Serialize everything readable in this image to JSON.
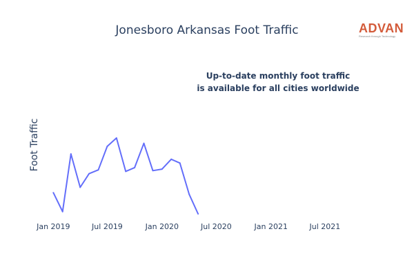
{
  "title": "Jonesboro Arkansas Foot Traffic",
  "brand": {
    "name": "ADVAN",
    "tagline": "Research through Technology",
    "color": "#d35b3a"
  },
  "annotation": {
    "line1": "Up-to-date monthly foot traffic",
    "line2": "is available for all cities worldwide"
  },
  "chart_data": {
    "type": "line",
    "title": "Jonesboro Arkansas Foot Traffic",
    "xlabel": "",
    "ylabel": "Foot Traffic",
    "x_ticks": [
      "Jan 2019",
      "Jul 2019",
      "Jan 2020",
      "Jul 2020",
      "Jan 2021",
      "Jul 2021"
    ],
    "xlim": [
      "2018-12-15",
      "2021-11-15"
    ],
    "ylim": [
      0,
      100
    ],
    "grid": false,
    "y_tick_labels_shown": false,
    "series": [
      {
        "color": "#636efa",
        "x": [
          "2019-01",
          "2019-02",
          "2019-03",
          "2019-04",
          "2019-05",
          "2019-06",
          "2019-07",
          "2019-08",
          "2019-09",
          "2019-10",
          "2019-11",
          "2019-12",
          "2020-01",
          "2020-02",
          "2020-03",
          "2020-04",
          "2020-05"
        ],
        "y": [
          28,
          3,
          79,
          35,
          53,
          58,
          89,
          100,
          56,
          61,
          93,
          57,
          59,
          72,
          67,
          26,
          0
        ]
      }
    ]
  }
}
